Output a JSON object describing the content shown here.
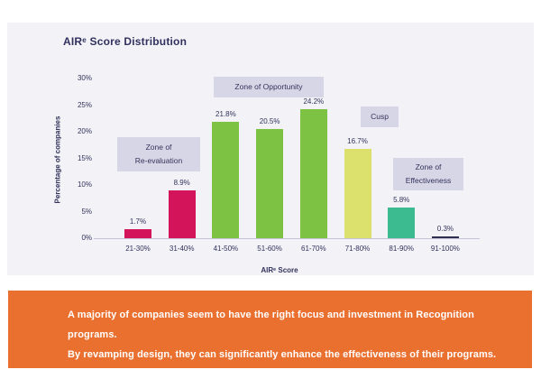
{
  "chart": {
    "chart_data": {
      "type": "bar",
      "title": "AIRᵉ Score Distribution",
      "categories": [
        "21-30%",
        "31-40%",
        "41-50%",
        "51-60%",
        "61-70%",
        "71-80%",
        "81-90%",
        "91-100%"
      ],
      "values": [
        1.7,
        8.9,
        21.8,
        20.5,
        24.2,
        16.7,
        5.8,
        0.3
      ],
      "value_labels": [
        "1.7%",
        "8.9%",
        "21.8%",
        "20.5%",
        "24.2%",
        "16.7%",
        "5.8%",
        "0.3%"
      ],
      "bar_colors": [
        "#d4145a",
        "#d4145a",
        "#7dc242",
        "#7dc242",
        "#7dc242",
        "#dce06c",
        "#3bbb8f",
        "#2f2f55"
      ],
      "xlabel": "AIRᵉ Score",
      "ylabel": "Percentage of companies",
      "ylim": [
        0,
        30
      ],
      "ytick_labels": [
        "0%",
        "5%",
        "10%",
        "15%",
        "20%",
        "25%",
        "30%"
      ],
      "grid": false,
      "legend": null,
      "annotations": [
        {
          "name": "zone-re-evaluation",
          "lines": [
            "Zone of",
            "Re-evaluation"
          ]
        },
        {
          "name": "zone-opportunity",
          "lines": [
            "Zone of Opportunity"
          ]
        },
        {
          "name": "zone-cusp",
          "lines": [
            "Cusp"
          ]
        },
        {
          "name": "zone-effectiveness",
          "lines": [
            "Zone of",
            "Effectiveness"
          ]
        }
      ]
    }
  },
  "banner": {
    "lines": [
      "A majority of companies seem to have the right focus and investment in Recognition programs.",
      "By revamping design, they can significantly enhance the effectiveness of their programs."
    ]
  },
  "colors": {
    "card_bg": "#f2f2f7",
    "banner_bg": "#ea7030",
    "zone_box_bg": "#d7d6e6",
    "text_dark": "#33335c",
    "pink": "#d4145a",
    "green": "#7dc242",
    "yellow_green": "#dce06c",
    "teal": "#3bbb8f",
    "navy": "#2f2f55"
  }
}
